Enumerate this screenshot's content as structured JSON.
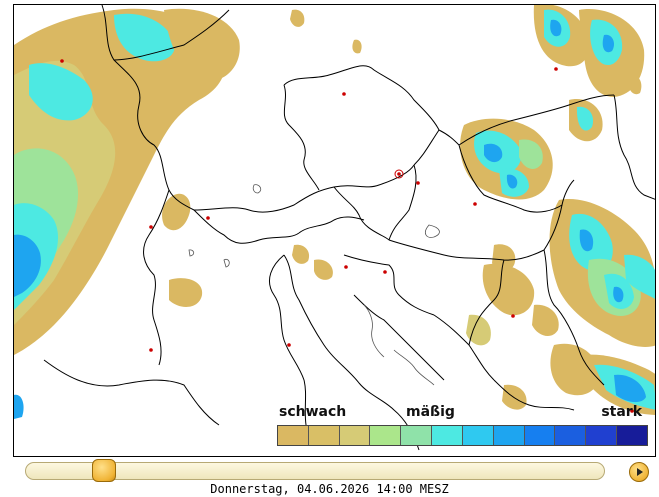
{
  "legend": {
    "label_weak": "schwach",
    "label_moderate": "mäßig",
    "label_strong": "stark",
    "colors": [
      "#dab862",
      "#d9bf66",
      "#d6cb76",
      "#abe68b",
      "#8fe2a9",
      "#4de9e2",
      "#2fc9f0",
      "#1ea5f0",
      "#167ff0",
      "#1b5fe0",
      "#2040d0",
      "#171c99"
    ]
  },
  "timeline": {
    "timestamp": "Donnerstag, 04.06.2026 14:00 MESZ",
    "position_fraction": 0.12
  },
  "map": {
    "land_color": "#ffffff",
    "border_color": "#000000",
    "city_marker_color": "#cc0000",
    "intensity_colors": {
      "weak": "#dab862",
      "light": "#d6cb76",
      "green": "#9ee39a",
      "cyan": "#4de9e2",
      "blue": "#1ea5f0",
      "strong": "#167ff0"
    }
  }
}
